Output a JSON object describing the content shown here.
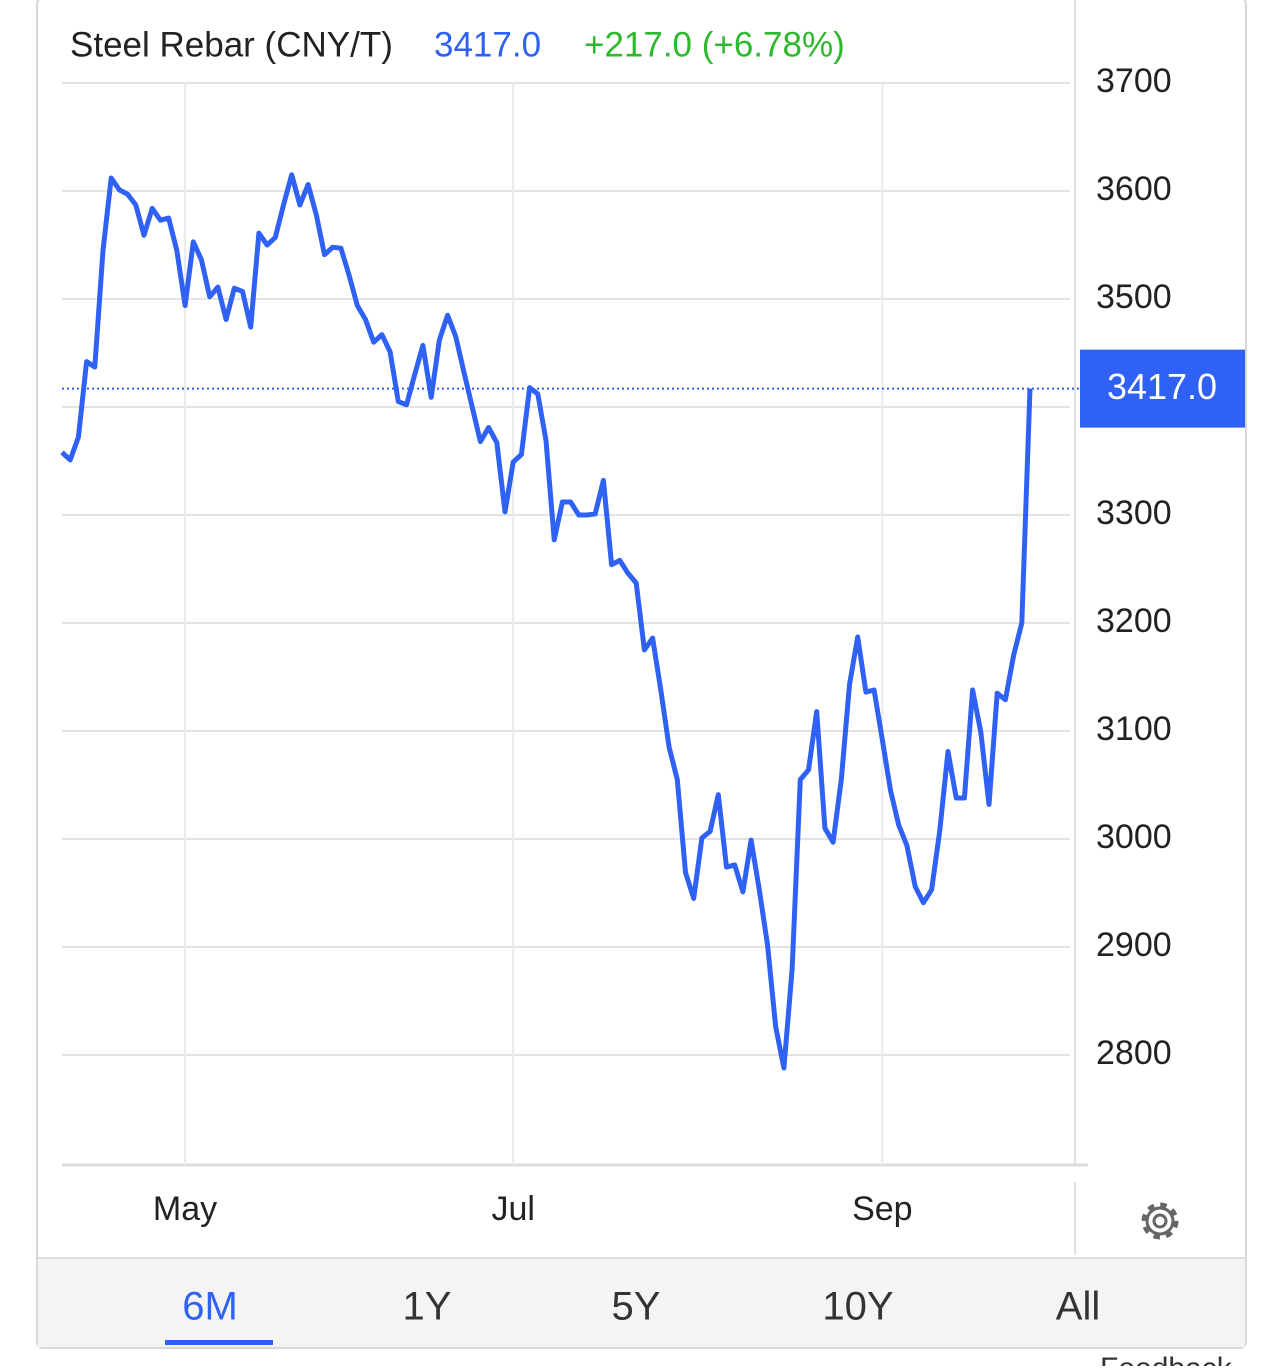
{
  "chart_data": {
    "type": "line",
    "title": "Steel Rebar (CNY/T)",
    "price": "3417.0",
    "change": "+217.0 (+6.78%)",
    "categories": [
      null,
      null,
      null,
      null,
      null,
      null,
      null,
      null,
      null,
      null,
      null,
      null,
      null,
      null,
      null,
      "May",
      null,
      null,
      null,
      null,
      null,
      null,
      null,
      null,
      null,
      null,
      null,
      null,
      null,
      null,
      null,
      null,
      null,
      null,
      null,
      null,
      null,
      null,
      null,
      null,
      null,
      null,
      null,
      null,
      null,
      null,
      null,
      null,
      null,
      null,
      null,
      null,
      null,
      null,
      null,
      "Jul",
      null,
      null,
      null,
      null,
      null,
      null,
      null,
      null,
      null,
      null,
      null,
      null,
      null,
      null,
      null,
      null,
      null,
      null,
      null,
      null,
      null,
      null,
      null,
      null,
      null,
      null,
      null,
      null,
      null,
      null,
      null,
      null,
      null,
      null,
      null,
      null,
      null,
      null,
      null,
      null,
      null,
      null,
      null,
      null,
      "Sep",
      null,
      null,
      null,
      null,
      null,
      null,
      null,
      null,
      null,
      null,
      null,
      null,
      null,
      null,
      null,
      null,
      null,
      null
    ],
    "values": [
      3358,
      3351,
      3372,
      3442,
      3437,
      3545,
      3612,
      3601,
      3597,
      3587,
      3559,
      3584,
      3573,
      3575,
      3545,
      3494,
      3553,
      3536,
      3502,
      3511,
      3481,
      3510,
      3507,
      3474,
      3561,
      3550,
      3557,
      3587,
      3615,
      3587,
      3606,
      3578,
      3541,
      3548,
      3547,
      3522,
      3494,
      3481,
      3460,
      3467,
      3451,
      3405,
      3402,
      3430,
      3457,
      3409,
      3462,
      3485,
      3465,
      3432,
      3400,
      3368,
      3381,
      3367,
      3303,
      3349,
      3356,
      3418,
      3412,
      3369,
      3277,
      3312,
      3312,
      3300,
      3300,
      3301,
      3332,
      3254,
      3258,
      3246,
      3237,
      3175,
      3186,
      3138,
      3085,
      3055,
      2969,
      2945,
      3001,
      3007,
      3041,
      2974,
      2976,
      2951,
      2999,
      2953,
      2902,
      2826,
      2788,
      2879,
      3055,
      3064,
      3118,
      3010,
      2997,
      3055,
      3143,
      3187,
      3136,
      3138,
      3092,
      3045,
      3013,
      2994,
      2956,
      2941,
      2953,
      3008,
      3081,
      3038,
      3038,
      3138,
      3099,
      3032,
      3135,
      3129,
      3170,
      3200,
      3417
    ],
    "color": "#2f62f4",
    "change_color": "#2eb82e",
    "ylim": [
      2700,
      3700
    ],
    "yticks": [
      2800,
      2900,
      3000,
      3100,
      3200,
      3300,
      3400,
      3500,
      3600,
      3700
    ],
    "grid": true
  },
  "ranges": [
    "6M",
    "1Y",
    "5Y",
    "10Y",
    "All"
  ],
  "active_range": 0,
  "feedback": "Feedback"
}
